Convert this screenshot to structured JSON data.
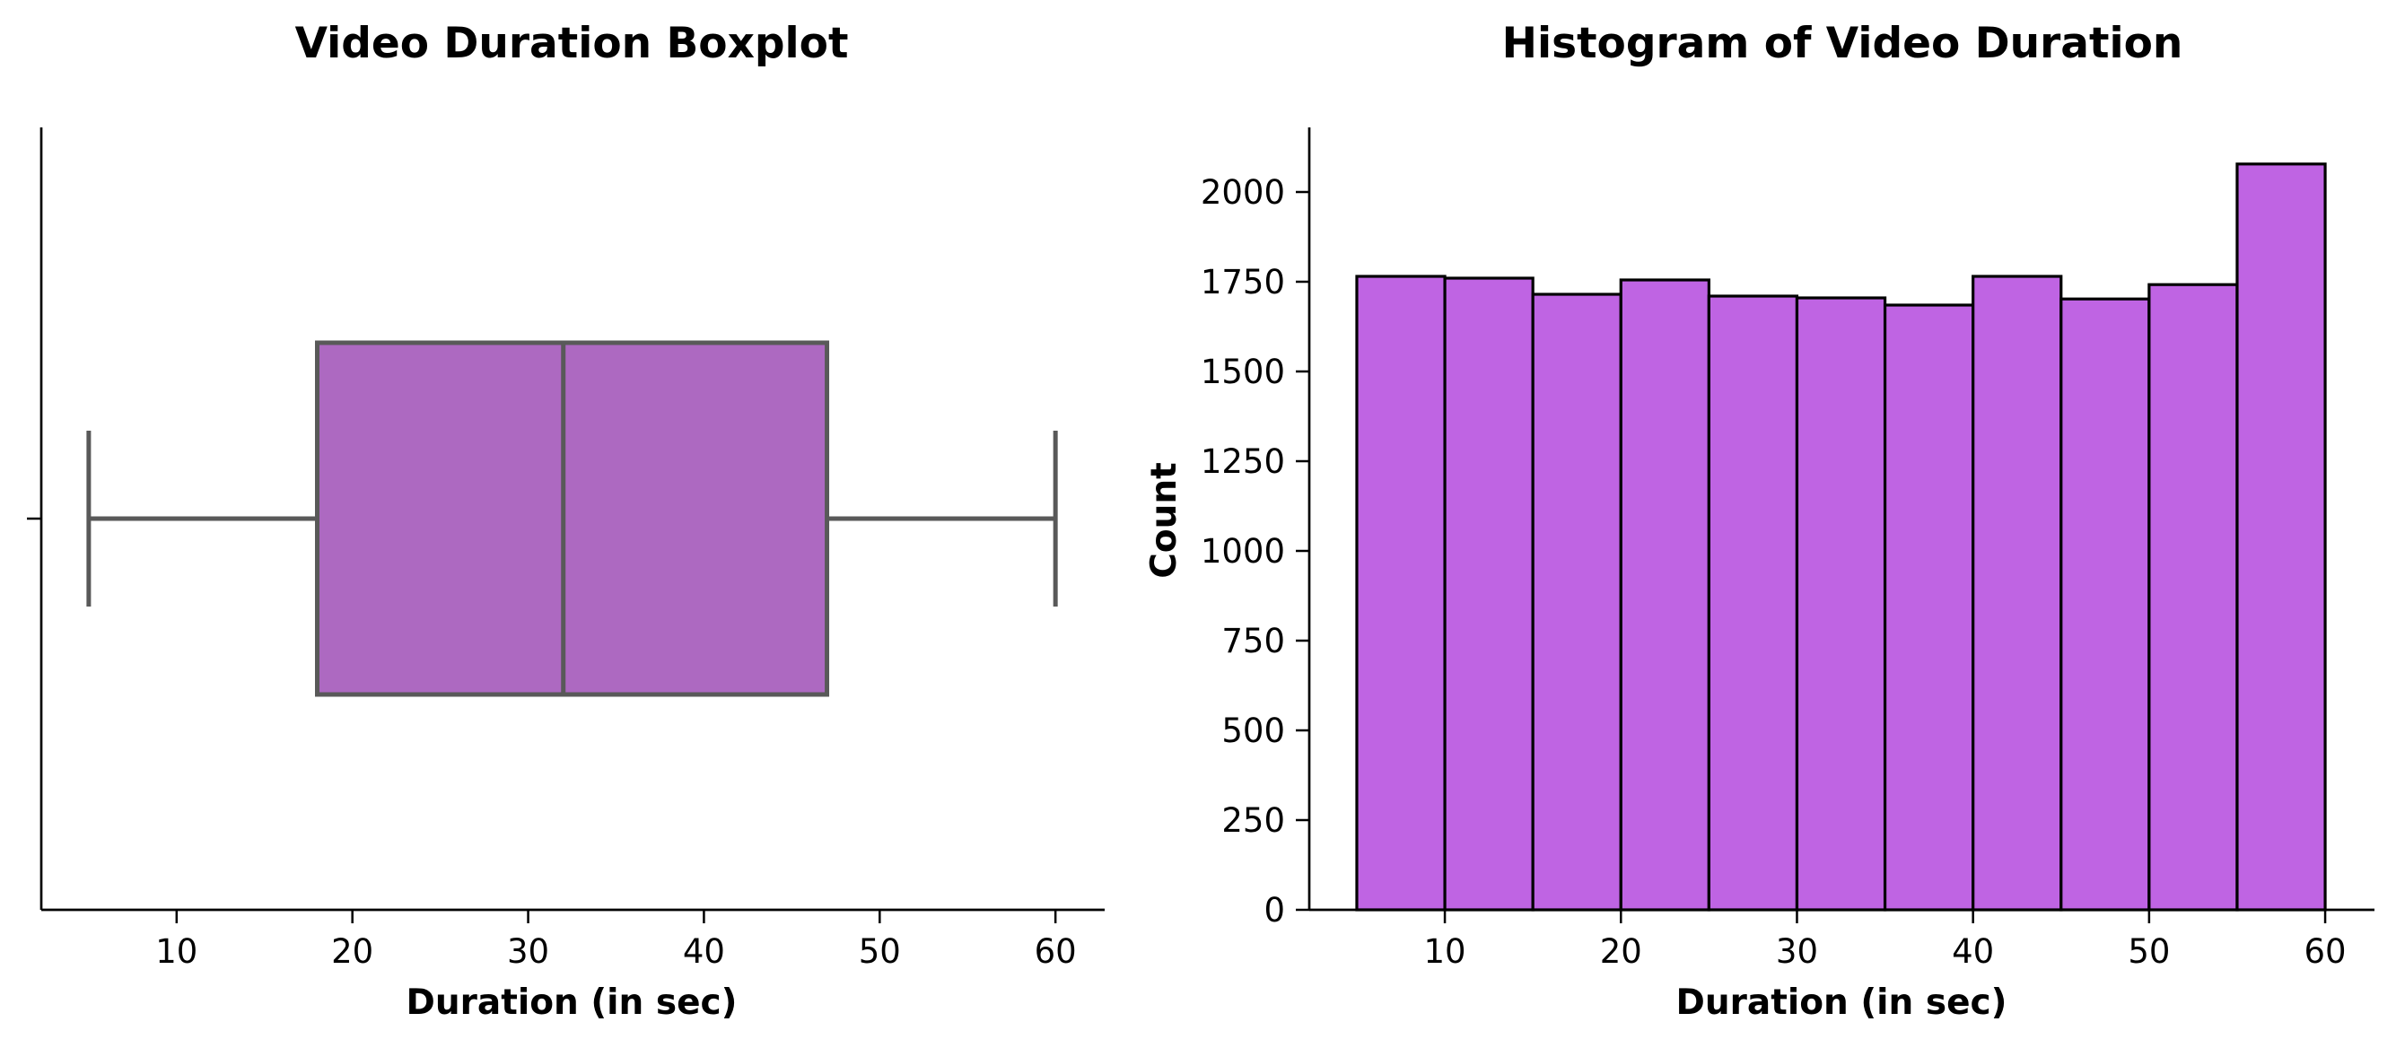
{
  "chart_data": [
    {
      "type": "boxplot",
      "title": "Video Duration Boxplot",
      "xlabel": "Duration (in sec)",
      "ylabel": "",
      "xlim": [
        2.3,
        62.8
      ],
      "xticks": [
        10,
        20,
        30,
        40,
        50,
        60
      ],
      "stats": {
        "whislo": 5,
        "q1": 18,
        "med": 32,
        "q3": 47,
        "whishi": 60
      },
      "colors": {
        "box": "#ad69c1",
        "line": "#595959"
      },
      "grid": false
    },
    {
      "type": "histogram",
      "title": "Histogram of Video Duration",
      "xlabel": "Duration (in sec)",
      "ylabel": "Count",
      "xlim": [
        2.3,
        62.8
      ],
      "ylim": [
        0,
        2180
      ],
      "xticks": [
        10,
        20,
        30,
        40,
        50,
        60
      ],
      "yticks": [
        0,
        250,
        500,
        750,
        1000,
        1250,
        1500,
        1750,
        2000
      ],
      "bin_edges": [
        5,
        10,
        15,
        20,
        25,
        30,
        35,
        40,
        45,
        50,
        55,
        60
      ],
      "values": [
        1765,
        1760,
        1715,
        1755,
        1710,
        1705,
        1685,
        1765,
        1702,
        1742,
        2078
      ],
      "colors": {
        "bar": "#bf64e3",
        "edge": "#000000"
      },
      "grid": false
    }
  ]
}
